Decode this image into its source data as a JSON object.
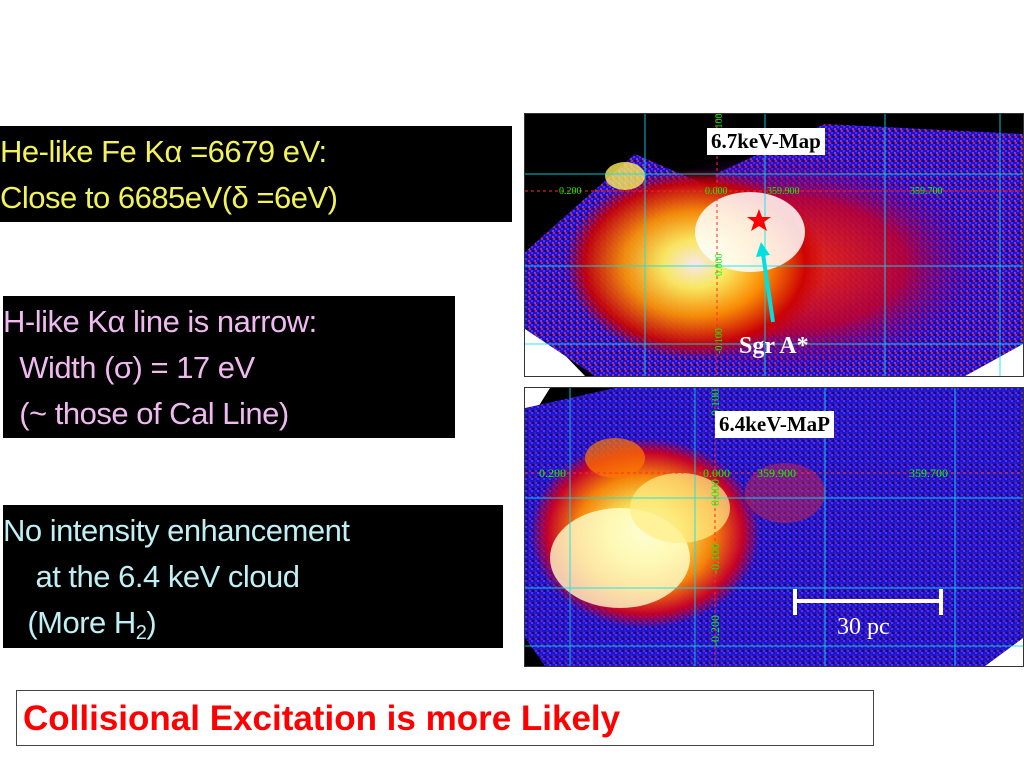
{
  "box1": {
    "line1": "He-like Fe Kα =6679 eV:",
    "line2": "Close to 6685eV(δ =6eV)"
  },
  "box2": {
    "line1": "H-like Kα line is narrow:",
    "line2": "  Width (σ) = 17 eV",
    "line3": "  (~ those of Cal Line)"
  },
  "box3": {
    "line1": "No intensity enhancement",
    "line2": "    at the 6.4 keV cloud",
    "line3_pre": "   (More H",
    "line3_sub": "2",
    "line3_post": ")"
  },
  "map1": {
    "label": "6.7keV-Map",
    "pointer_label": "Sgr A*",
    "x_ticks": [
      "0.200",
      "0.000",
      "359.900",
      "359.700"
    ],
    "y_ticks": [
      "0.100",
      "0.000",
      "-0.100"
    ]
  },
  "map2": {
    "label": "6.4keV-MaP",
    "scale_label": "30 pc",
    "x_ticks": [
      "0.200",
      "0.000",
      "359.900",
      "359.700"
    ],
    "y_ticks": [
      "0.100",
      "0.000",
      "-0.100",
      "-0.200"
    ]
  },
  "conclusion": "Collisional Excitation is more Likely",
  "colors": {
    "box1_text": "#f2f25a",
    "box2_text": "#f0b9f0",
    "box3_text": "#bff0f5",
    "conclusion_text": "#ff0000",
    "grid": "#00e5ee",
    "tick_text": "#00ff00",
    "marker": "#ff0000",
    "arrow": "#00e0e0"
  }
}
